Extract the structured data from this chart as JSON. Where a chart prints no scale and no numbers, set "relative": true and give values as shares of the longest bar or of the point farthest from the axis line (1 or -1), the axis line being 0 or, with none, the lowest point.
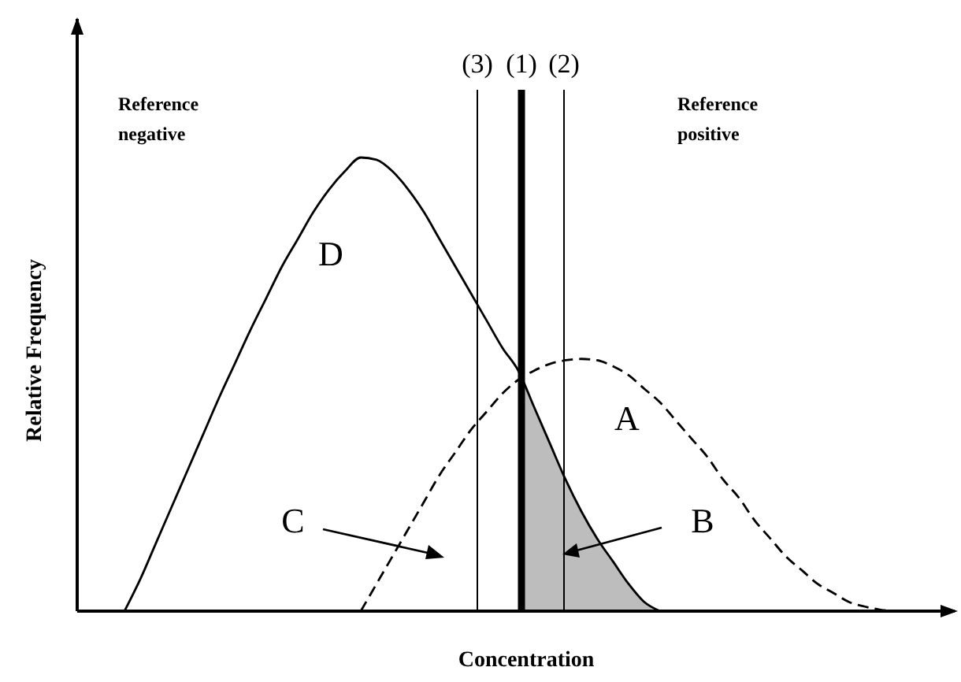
{
  "chart_data": {
    "type": "line",
    "relative": true,
    "xlabel": "Concentration",
    "ylabel": "Relative Frequency",
    "categories": [
      null,
      null,
      null,
      null,
      null,
      null,
      null,
      null,
      null,
      null,
      null,
      null,
      null,
      null,
      null,
      null,
      null,
      null,
      null,
      null,
      null,
      null,
      null,
      null,
      null,
      null,
      null,
      null,
      null,
      null,
      null,
      null,
      null,
      null,
      null,
      null,
      null,
      null,
      null,
      null,
      null,
      null,
      null,
      null,
      null,
      null,
      null,
      null,
      null,
      null,
      null,
      null,
      null,
      null,
      null,
      null
    ],
    "series": [
      {
        "name": "D",
        "color": "#000000",
        "line_style": "solid",
        "values": [
          null,
          null,
          null,
          0,
          0.07,
          0.15,
          0.23,
          0.31,
          0.39,
          0.47,
          0.545,
          0.62,
          0.69,
          0.76,
          0.82,
          0.88,
          0.93,
          0.97,
          1,
          0.995,
          0.97,
          0.93,
          0.88,
          0.82,
          0.76,
          0.7,
          0.64,
          0.58,
          0.53,
          0.45,
          0.37,
          0.29,
          0.22,
          0.16,
          0.11,
          0.06,
          0.02,
          0,
          null,
          null,
          null,
          null,
          null,
          null,
          null,
          null,
          null,
          null,
          null,
          null,
          null,
          null,
          null,
          null,
          null,
          null
        ]
      },
      {
        "name": "A",
        "color": "#000000",
        "line_style": "dashed",
        "values": [
          null,
          null,
          null,
          null,
          null,
          null,
          null,
          null,
          null,
          null,
          null,
          null,
          null,
          null,
          null,
          null,
          null,
          null,
          0,
          0.06,
          0.12,
          0.18,
          0.24,
          0.3,
          0.35,
          0.4,
          0.44,
          0.48,
          0.51,
          0.53,
          0.545,
          0.553,
          0.556,
          0.553,
          0.54,
          0.52,
          0.49,
          0.46,
          0.42,
          0.38,
          0.34,
          0.29,
          0.25,
          0.2,
          0.16,
          0.12,
          0.09,
          0.06,
          0.04,
          0.02,
          0.01,
          0.003,
          0,
          null,
          null,
          null
        ]
      },
      {
        "type": "area",
        "color": "#bdbdbd",
        "values": [
          null,
          null,
          null,
          null,
          null,
          null,
          null,
          null,
          null,
          null,
          null,
          null,
          null,
          null,
          null,
          null,
          null,
          null,
          null,
          null,
          null,
          null,
          null,
          null,
          null,
          null,
          null,
          null,
          0.53,
          0.45,
          0.37,
          0.29,
          0.22,
          0.16,
          0.11,
          0.06,
          0.02,
          0,
          null,
          null,
          null,
          null,
          null,
          null,
          null,
          null,
          null,
          null,
          null,
          null,
          null,
          null,
          null,
          null,
          null,
          null
        ]
      }
    ],
    "annotations": [
      "Reference negative",
      "Reference positive",
      "C",
      "B",
      "(3)",
      "(1)",
      "(2)"
    ]
  }
}
